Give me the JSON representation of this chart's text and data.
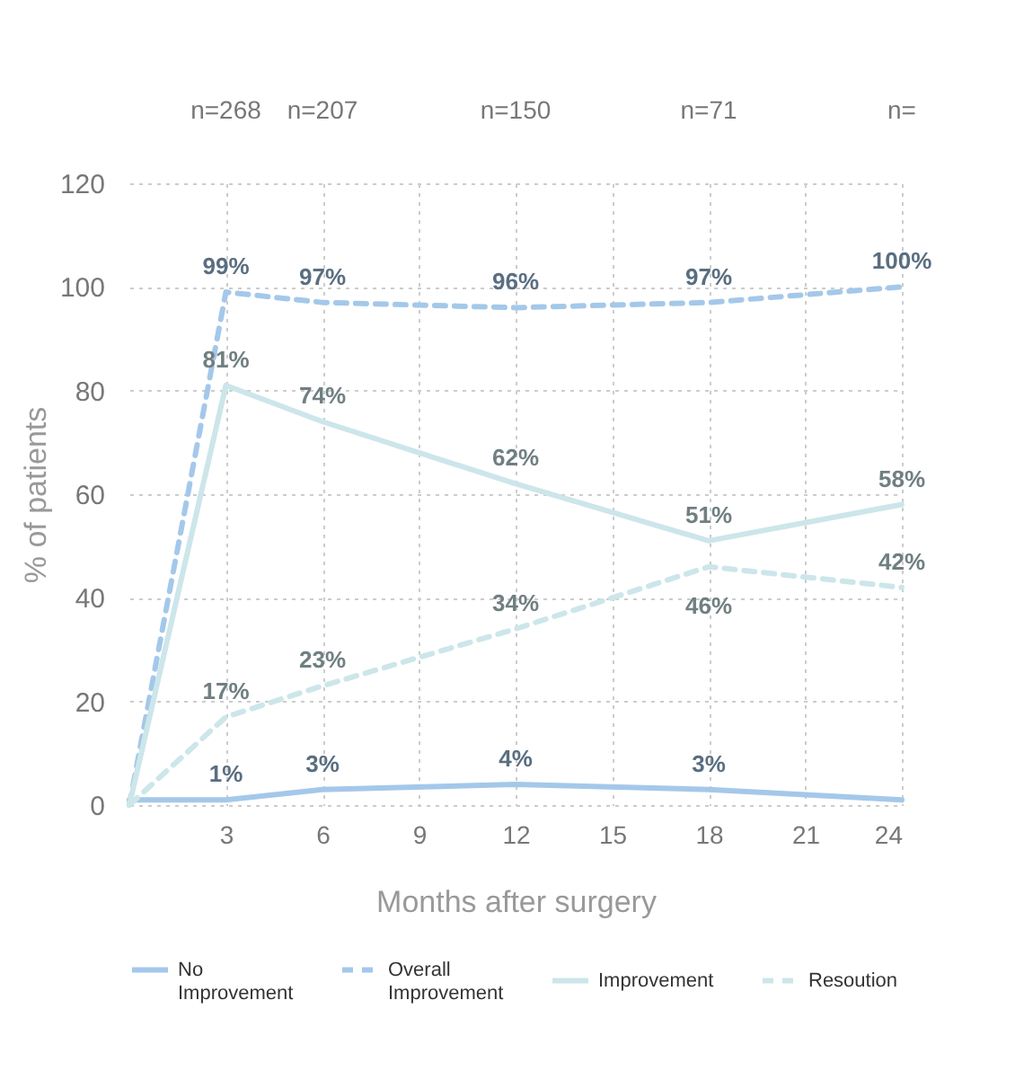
{
  "chart_data": {
    "type": "line",
    "xlabel": "Months after surgery",
    "ylabel": "% of patients",
    "x": [
      0,
      3,
      6,
      12,
      18,
      24
    ],
    "series": [
      {
        "name": "No Improvement",
        "color": "#a4c8ea",
        "line_style": "solid",
        "values": [
          1,
          1,
          3,
          4,
          3,
          1
        ],
        "value_labels": [
          null,
          "1%",
          "3%",
          "4%",
          "3%",
          null
        ]
      },
      {
        "name": "Overall Improvement",
        "color": "#a4c8ea",
        "line_style": "dashed",
        "values": [
          0,
          99,
          97,
          96,
          97,
          100
        ],
        "value_labels": [
          null,
          "99%",
          "97%",
          "96%",
          "97%",
          "100%"
        ]
      },
      {
        "name": "Improvement",
        "color": "#cce6ea",
        "line_style": "solid",
        "values": [
          0,
          81,
          74,
          62,
          51,
          58
        ],
        "value_labels": [
          null,
          "81%",
          "74%",
          "62%",
          "51%",
          "58%"
        ]
      },
      {
        "name": "Resoution",
        "color": "#cce6ea",
        "line_style": "dashed",
        "values": [
          0,
          17,
          23,
          34,
          46,
          42
        ],
        "value_labels": [
          null,
          "17%",
          "23%",
          "34%",
          "46%",
          "42%"
        ]
      }
    ],
    "annotations": [
      "n=268",
      "n=207",
      "n=150",
      "n=71",
      "n="
    ],
    "xlim": [
      0,
      24
    ],
    "xticks": [
      3,
      6,
      9,
      12,
      15,
      18,
      21,
      24
    ],
    "ylim": [
      0,
      120
    ],
    "yticks": [
      0,
      20,
      40,
      60,
      80,
      100,
      120
    ],
    "grid": true,
    "legend": "bottom",
    "marker": "none"
  }
}
